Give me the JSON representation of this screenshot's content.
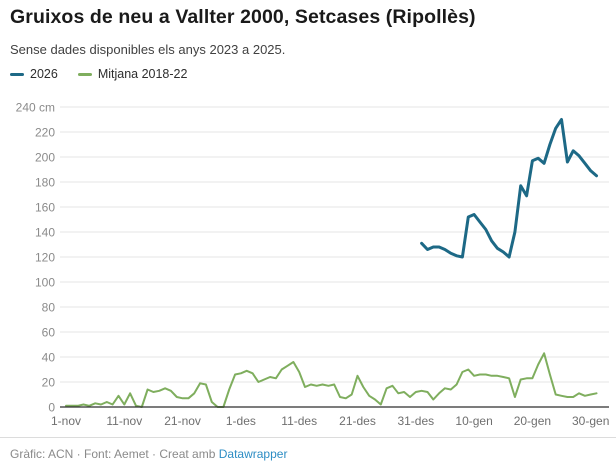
{
  "header": {
    "title": "Gruixos de neu a Vallter 2000, Setcases (Ripollès)",
    "subtitle": "Sense dades disponibles els anys 2023 a 2025."
  },
  "legend": [
    {
      "label": "2026",
      "color": "#1d6986"
    },
    {
      "label": "Mitjana 2018-22",
      "color": "#7fae5e"
    }
  ],
  "colors": {
    "grid": "#e5e5e5",
    "axis": "#2e2e2e",
    "y_tick_label": "#8b8b8b",
    "x_tick_label": "#6f6f6f",
    "link": "#2d8dc4"
  },
  "chart_data": {
    "type": "line",
    "title": "Gruixos de neu a Vallter 2000, Setcases (Ripollès)",
    "subtitle": "Sense dades disponibles els anys 2023 a 2025.",
    "ylabel": "cm",
    "ylim": [
      0,
      240
    ],
    "y_ticks": [
      0,
      20,
      40,
      60,
      80,
      100,
      120,
      140,
      160,
      180,
      200,
      220,
      240
    ],
    "y_top_tick_label": "240 cm",
    "grid": true,
    "legend_position": "top",
    "x_unit": "days since 1-nov",
    "x_domain_days": [
      0,
      91
    ],
    "x_tick_days": [
      0,
      10,
      20,
      30,
      40,
      50,
      60,
      70,
      80,
      90
    ],
    "x_tick_labels": [
      "1-nov",
      "11-nov",
      "21-nov",
      "1-des",
      "11-des",
      "21-des",
      "31-des",
      "10-gen",
      "20-gen",
      "30-gen"
    ],
    "series": [
      {
        "name": "2026",
        "color": "#1d6986",
        "stroke_width": 3,
        "start_day": 61,
        "values": [
          131,
          126,
          128,
          128,
          126,
          123,
          121,
          120,
          152,
          154,
          148,
          142,
          133,
          127,
          124,
          120,
          140,
          177,
          169,
          197,
          199,
          195,
          210,
          223,
          230,
          196,
          205,
          201,
          195,
          189,
          185
        ]
      },
      {
        "name": "Mitjana 2018-22",
        "color": "#7fae5e",
        "stroke_width": 2,
        "start_day": 0,
        "values": [
          1,
          1,
          1,
          2,
          1,
          3,
          2,
          4,
          2,
          9,
          2,
          11,
          1,
          0,
          14,
          12,
          13,
          15,
          13,
          8,
          7,
          7,
          11,
          19,
          18,
          4,
          0,
          0,
          14,
          26,
          27,
          29,
          27,
          20,
          22,
          24,
          23,
          30,
          33,
          36,
          28,
          16,
          18,
          17,
          18,
          17,
          18,
          8,
          7,
          10,
          25,
          16,
          9,
          6,
          2,
          15,
          17,
          11,
          12,
          8,
          12,
          13,
          12,
          6,
          11,
          15,
          14,
          18,
          28,
          30,
          25,
          26,
          26,
          25,
          25,
          24,
          23,
          8,
          22,
          23,
          23,
          34,
          43,
          26,
          10,
          9,
          8,
          8,
          11,
          9,
          10,
          11
        ]
      }
    ]
  },
  "footer": {
    "prefix": "Gràfic: ACN · Font: Aemet · Creat amb ",
    "link": "Datawrapper"
  }
}
